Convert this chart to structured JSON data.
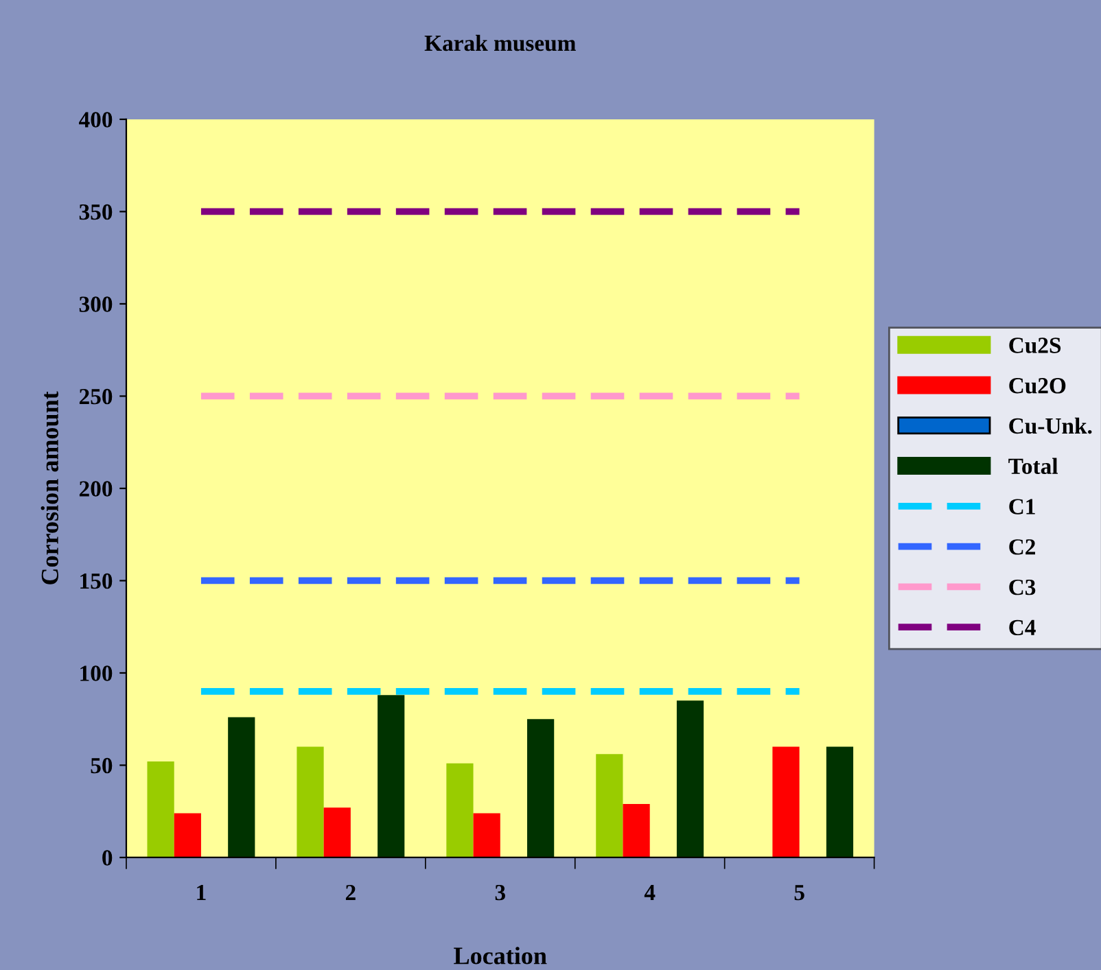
{
  "chart_data": {
    "type": "bar",
    "title": "Karak museum",
    "xlabel": "Location",
    "ylabel": "Corrosion amount",
    "categories": [
      "1",
      "2",
      "3",
      "4",
      "5"
    ],
    "series": [
      {
        "name": "Cu2S",
        "color": "#99cc00",
        "values": [
          52,
          60,
          51,
          56,
          null
        ]
      },
      {
        "name": "Cu2O",
        "color": "#ff0000",
        "values": [
          24,
          27,
          24,
          29,
          60
        ]
      },
      {
        "name": "Cu-Unk.",
        "color": "#0066cc",
        "values": [
          null,
          null,
          null,
          null,
          null
        ]
      },
      {
        "name": "Total",
        "color": "#003300",
        "values": [
          76,
          88,
          75,
          85,
          60
        ]
      },
      {
        "name": "C1",
        "type": "line",
        "line_style": "dashed",
        "color": "#00ccff",
        "values": [
          90,
          90,
          90,
          90,
          90
        ]
      },
      {
        "name": "C2",
        "type": "line",
        "line_style": "dashed",
        "color": "#3366ff",
        "values": [
          150,
          150,
          150,
          150,
          150
        ]
      },
      {
        "name": "C3",
        "type": "line",
        "line_style": "dashed",
        "color": "#ff99cc",
        "values": [
          250,
          250,
          250,
          250,
          250
        ]
      },
      {
        "name": "C4",
        "type": "line",
        "line_style": "dashed",
        "color": "#800080",
        "values": [
          350,
          350,
          350,
          350,
          350
        ]
      }
    ],
    "ylim": [
      0,
      400
    ],
    "yticks": [
      0,
      50,
      100,
      150,
      200,
      250,
      300,
      350,
      400
    ],
    "grid": false,
    "legend": "right"
  }
}
